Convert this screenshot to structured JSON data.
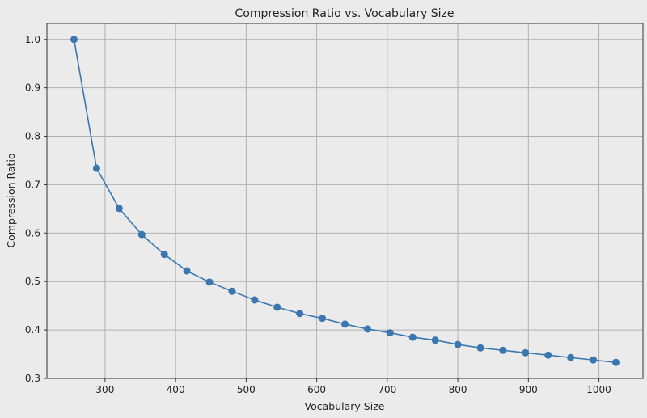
{
  "chart_data": {
    "type": "line",
    "title": "Compression Ratio vs. Vocabulary Size",
    "xlabel": "Vocabulary Size",
    "ylabel": "Compression Ratio",
    "xlim": [
      217.6,
      1062.4
    ],
    "ylim": [
      0.3,
      1.033
    ],
    "xticks": [
      300,
      400,
      500,
      600,
      700,
      800,
      900,
      1000
    ],
    "yticks": [
      0.3,
      0.4,
      0.5,
      0.6,
      0.7,
      0.8,
      0.9,
      1.0
    ],
    "ytick_labels": [
      "0.3",
      "0.4",
      "0.5",
      "0.6",
      "0.7",
      "0.8",
      "0.9",
      "1.0"
    ],
    "grid": true,
    "marker": "circle",
    "colors": {
      "line": "#3a76af",
      "background": "#ebebeb",
      "grid": "#b0b0b0"
    },
    "x": [
      256,
      288,
      320,
      352,
      384,
      416,
      448,
      480,
      512,
      544,
      576,
      608,
      640,
      672,
      704,
      736,
      768,
      800,
      832,
      864,
      896,
      928,
      960,
      992,
      1024
    ],
    "values": [
      1.0,
      0.734,
      0.651,
      0.597,
      0.556,
      0.522,
      0.499,
      0.48,
      0.462,
      0.447,
      0.434,
      0.424,
      0.412,
      0.402,
      0.394,
      0.385,
      0.379,
      0.37,
      0.363,
      0.358,
      0.353,
      0.348,
      0.343,
      0.338,
      0.333
    ]
  }
}
